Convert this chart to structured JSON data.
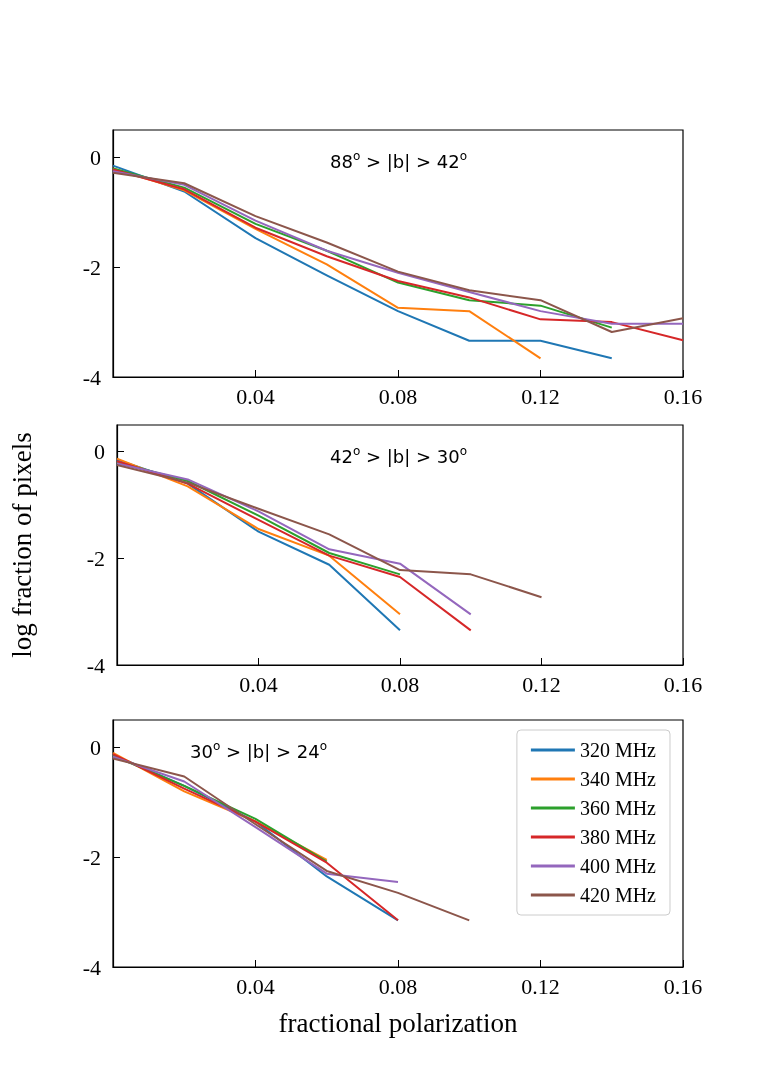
{
  "chart_data": [
    {
      "type": "line",
      "annotations": [
        "88$^{o}$ > |b| > 42$^{o}$"
      ],
      "x": [
        0,
        0.02,
        0.04,
        0.06,
        0.08,
        0.1,
        0.12,
        0.14,
        0.16
      ],
      "xlim": [
        0,
        0.16
      ],
      "xticks": [
        0.04,
        0.08,
        0.12,
        0.16
      ],
      "ylim": [
        -4,
        0.5
      ],
      "yticks": [
        -4,
        -2,
        0
      ],
      "grid": false,
      "marker": "none",
      "line_style": "solid",
      "series": [
        {
          "color": "#1f77b4",
          "values": [
            -0.15,
            -0.62,
            -1.47,
            -2.15,
            -2.8,
            -3.34,
            -3.34,
            -3.66,
            null
          ]
        },
        {
          "color": "#ff7f0e",
          "values": [
            -0.2,
            -0.6,
            -1.3,
            -1.95,
            -2.74,
            -2.8,
            -3.66,
            null,
            null
          ]
        },
        {
          "color": "#2ca02c",
          "values": [
            -0.2,
            -0.55,
            -1.21,
            -1.7,
            -2.28,
            -2.6,
            -2.7,
            -3.1,
            null
          ]
        },
        {
          "color": "#d62728",
          "values": [
            -0.22,
            -0.58,
            -1.28,
            -1.8,
            -2.25,
            -2.55,
            -2.95,
            -3.0,
            -3.33
          ]
        },
        {
          "color": "#9467bd",
          "values": [
            -0.25,
            -0.5,
            -1.15,
            -1.7,
            -2.1,
            -2.45,
            -2.8,
            -3.03,
            -3.03
          ]
        },
        {
          "color": "#8c564b",
          "values": [
            -0.28,
            -0.47,
            -1.07,
            -1.55,
            -2.08,
            -2.42,
            -2.6,
            -3.18,
            -2.93
          ]
        }
      ]
    },
    {
      "type": "line",
      "ylabel": "log fraction of pixels",
      "annotations": [
        "42$^{o}$ > |b| > 30$^{o}$"
      ],
      "x": [
        0,
        0.02,
        0.04,
        0.06,
        0.08,
        0.1,
        0.12
      ],
      "xlim": [
        0,
        0.16
      ],
      "xticks": [
        0.04,
        0.08,
        0.12,
        0.16
      ],
      "ylim": [
        -4,
        0.5
      ],
      "yticks": [
        -4,
        -2,
        0
      ],
      "grid": false,
      "marker": "none",
      "line_style": "solid",
      "series": [
        {
          "color": "#1f77b4",
          "values": [
            -0.15,
            -0.6,
            -1.5,
            -2.12,
            -3.35,
            null,
            null
          ]
        },
        {
          "color": "#ff7f0e",
          "values": [
            -0.13,
            -0.65,
            -1.45,
            -1.95,
            -3.05,
            null,
            null
          ]
        },
        {
          "color": "#2ca02c",
          "values": [
            -0.2,
            -0.55,
            -1.2,
            -1.9,
            -2.3,
            null,
            null
          ]
        },
        {
          "color": "#d62728",
          "values": [
            -0.18,
            -0.6,
            -1.28,
            -1.95,
            -2.35,
            -3.35,
            null
          ]
        },
        {
          "color": "#9467bd",
          "values": [
            -0.22,
            -0.52,
            -1.12,
            -1.83,
            -2.1,
            -3.05,
            null
          ]
        },
        {
          "color": "#8c564b",
          "values": [
            -0.25,
            -0.58,
            -1.07,
            -1.55,
            -2.22,
            -2.3,
            -2.73
          ]
        }
      ]
    },
    {
      "type": "line",
      "xlabel": "fractional polarization",
      "annotations": [
        "30$^{o}$ > |b| > 24$^{o}$"
      ],
      "x": [
        0,
        0.02,
        0.04,
        0.06,
        0.08,
        0.1
      ],
      "xlim": [
        0,
        0.16
      ],
      "xticks": [
        0.04,
        0.08,
        0.12,
        0.16
      ],
      "ylim": [
        -4,
        0.5
      ],
      "yticks": [
        -4,
        -2,
        0
      ],
      "grid": false,
      "marker": "none",
      "line_style": "solid",
      "legend": "top right",
      "series": [
        {
          "name": "320 MHz",
          "color": "#1f77b4",
          "values": [
            -0.13,
            -0.7,
            -1.35,
            -2.35,
            -3.15,
            null
          ]
        },
        {
          "name": "340 MHz",
          "color": "#ff7f0e",
          "values": [
            -0.1,
            -0.8,
            -1.35,
            -2.05,
            null,
            null
          ]
        },
        {
          "name": "360 MHz",
          "color": "#2ca02c",
          "values": [
            -0.15,
            -0.7,
            -1.3,
            -2.08,
            null,
            null
          ]
        },
        {
          "name": "380 MHz",
          "color": "#d62728",
          "values": [
            -0.12,
            -0.75,
            -1.35,
            -2.1,
            -3.15,
            null
          ]
        },
        {
          "name": "400 MHz",
          "color": "#9467bd",
          "values": [
            -0.17,
            -0.62,
            -1.45,
            -2.3,
            -2.45,
            null
          ]
        },
        {
          "name": "420 MHz",
          "color": "#8c564b",
          "values": [
            -0.2,
            -0.53,
            -1.4,
            -2.25,
            -2.65,
            -3.15
          ]
        }
      ]
    }
  ]
}
